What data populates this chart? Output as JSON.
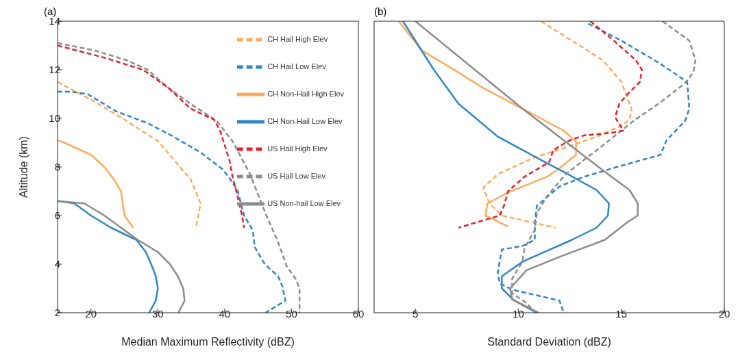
{
  "chart_data": [
    {
      "type": "line",
      "title": "(a)",
      "xlabel": "Median Maximum Reflectivity (dBZ)",
      "ylabel": "Altitude (km)",
      "xlim": [
        15,
        60
      ],
      "xticks": [
        20,
        30,
        40,
        50,
        60
      ],
      "ylim": [
        2,
        14
      ],
      "yticks": [
        2,
        4,
        6,
        8,
        10,
        12,
        14
      ],
      "grid": false,
      "legend": "top right",
      "marker": "none",
      "series": [
        {
          "name": "CH Hail High Elev",
          "color": "#ffab5c",
          "line_style": "dashed",
          "x": [
            15,
            20.5,
            25.3,
            30.1,
            33.3,
            34.9,
            36.4,
            35.9,
            35.7
          ],
          "values": [
            11.5,
            10.7,
            9.9,
            9.05,
            8.0,
            7.5,
            6.5,
            5.8,
            5.5
          ]
        },
        {
          "name": "CH Non-Hail High Elev",
          "color": "#ffab5c",
          "line_style": "solid",
          "x": [
            15,
            16,
            20,
            22,
            23.4,
            24.5,
            25,
            26.3
          ],
          "values": [
            9.1,
            9.0,
            8.5,
            8.0,
            7.5,
            7.0,
            6.0,
            5.5
          ]
        },
        {
          "name": "CH Hail Low Elev",
          "color": "#2e86c6",
          "line_style": "dashed",
          "x": [
            15,
            17,
            19.5,
            23.7,
            28.5,
            32,
            36.4,
            39.7,
            40.7,
            41.9,
            42.9,
            44.2,
            44.5,
            46,
            48,
            48.6,
            49.1,
            46.1
          ],
          "values": [
            11.1,
            11.1,
            11.0,
            10.3,
            9.8,
            9.3,
            8.6,
            7.9,
            7.55,
            7.05,
            6.0,
            5.4,
            4.7,
            4.0,
            3.5,
            3.1,
            2.5,
            2
          ]
        },
        {
          "name": "CH Non-Hail Low Elev",
          "color": "#2e86c6",
          "line_style": "solid",
          "x": [
            15,
            17.5,
            20,
            23,
            26.8,
            28.2,
            29,
            29.7,
            30,
            29.7,
            28.7
          ],
          "values": [
            6.6,
            6.5,
            6.0,
            5.5,
            5.0,
            4.5,
            4.0,
            3.5,
            3.0,
            2.5,
            2
          ]
        },
        {
          "name": "US Hail Low Elev",
          "color": "#8c8c8c",
          "line_style": "dashed",
          "x": [
            15,
            20.5,
            25.3,
            28.5,
            31.6,
            34.9,
            38.8,
            41.2,
            43.8,
            46.1,
            48,
            49.3,
            50.6,
            51.2,
            51.2
          ],
          "values": [
            13.1,
            12.8,
            12.4,
            12.0,
            11.25,
            10.6,
            9.9,
            9.05,
            7.7,
            6.1,
            4.9,
            3.9,
            3.4,
            3.0,
            2
          ]
        },
        {
          "name": "US Non-hail Low Elev",
          "color": "#8c8c8c",
          "line_style": "solid",
          "x": [
            15,
            19,
            22,
            24.5,
            27,
            30,
            31.8,
            33,
            33.8,
            34,
            33.1
          ],
          "values": [
            6.6,
            6.5,
            6.0,
            5.5,
            5.0,
            4.5,
            4.0,
            3.5,
            3.0,
            2.5,
            2
          ]
        },
        {
          "name": "US Hail High Elev",
          "color": "#e8202a",
          "line_style": "dashed",
          "x": [
            15,
            22,
            27.8,
            31.6,
            34.9,
            38.4,
            39.3,
            40.7,
            41.2,
            41.7,
            42.6,
            42.9
          ],
          "values": [
            13.0,
            12.5,
            12.0,
            11.25,
            10.4,
            9.95,
            9.5,
            8.3,
            7.55,
            7.05,
            6.0,
            5.5
          ]
        }
      ]
    },
    {
      "type": "line",
      "title": "(b)",
      "xlabel": "Standard Deviation (dBZ)",
      "xlim": [
        3,
        20
      ],
      "xticks": [
        5,
        10,
        15,
        20
      ],
      "ylim": [
        2,
        14
      ],
      "yticks": [
        2,
        4,
        6,
        8,
        10,
        12,
        14
      ],
      "tick_labels": "x",
      "grid": false,
      "marker": "none",
      "series": [
        {
          "color": "#ffab5c",
          "line_style": "dashed",
          "x": [
            11.1,
            12.6,
            14.1,
            15.0,
            15.5,
            15.4,
            15.0,
            13.8,
            12.3,
            10.8,
            9.0,
            8.3,
            8.6,
            9.2,
            11.8
          ],
          "values": [
            14,
            13.2,
            12.4,
            11.5,
            10.4,
            9.95,
            9.7,
            9.25,
            8.8,
            8.4,
            7.7,
            7.15,
            6.5,
            6.0,
            5.5
          ]
        },
        {
          "color": "#ffab5c",
          "line_style": "solid",
          "x": [
            4.2,
            5.3,
            6.5,
            8.3,
            10.2,
            12.2,
            12.8,
            12.8,
            12.0,
            11.4,
            9.5,
            8.5,
            8.4,
            9.5
          ],
          "values": [
            14,
            12.8,
            12.2,
            11.25,
            10.4,
            9.5,
            9.05,
            8.5,
            7.95,
            7.6,
            6.95,
            6.5,
            6.0,
            5.55
          ]
        },
        {
          "color": "#2e86c6",
          "line_style": "dashed",
          "x": [
            13.4,
            15.0,
            16.8,
            18.2,
            18.3,
            18.1,
            17.2,
            16.9,
            15.0,
            13.2,
            12.0,
            10.9,
            10.8,
            10.8,
            10.2,
            9.2,
            9.0,
            9.1,
            9.7,
            12.0,
            12.2
          ],
          "values": [
            13.9,
            13.2,
            12.3,
            11.5,
            10.4,
            9.9,
            9.1,
            8.5,
            8.05,
            7.6,
            7.2,
            6.4,
            5.7,
            5.0,
            4.75,
            4.6,
            3.65,
            3.2,
            2.95,
            2.5,
            2
          ]
        },
        {
          "color": "#2e86c6",
          "line_style": "solid",
          "x": [
            4.4,
            5.9,
            7.1,
            9.0,
            11.4,
            12.2,
            13.8,
            14.4,
            14.35,
            13.8,
            12.6,
            10.2,
            9.2,
            9.2,
            9.8,
            10.9
          ],
          "values": [
            14,
            12.0,
            10.6,
            9.25,
            8.15,
            7.8,
            7.05,
            6.5,
            6.0,
            5.5,
            5.0,
            4.1,
            3.5,
            3.0,
            2.5,
            2
          ]
        },
        {
          "color": "#8c8c8c",
          "line_style": "dashed",
          "x": [
            17.0,
            18.3,
            18.6,
            18.5,
            18.1,
            16.8,
            15.6,
            14.2,
            13.2,
            12.3,
            11.4,
            10.9,
            10.8,
            10.3,
            10.2,
            9.7,
            9.7,
            10.4,
            10.8
          ],
          "values": [
            14,
            13.2,
            12.4,
            11.9,
            11.45,
            10.6,
            9.9,
            8.95,
            8.3,
            7.7,
            6.8,
            6.1,
            5.4,
            4.66,
            4.1,
            3.4,
            2.8,
            2.4,
            2
          ]
        },
        {
          "color": "#8c8c8c",
          "line_style": "solid",
          "x": [
            5.0,
            10.2,
            14.2,
            15.4,
            15.8,
            15.8,
            15.25,
            14.2,
            12.0,
            10.4,
            9.6,
            9.7,
            11.0
          ],
          "values": [
            14,
            10.4,
            7.8,
            7.05,
            6.5,
            6.0,
            5.7,
            5.0,
            4.3,
            3.75,
            3.0,
            2.55,
            2
          ]
        },
        {
          "color": "#e8202a",
          "line_style": "dashed",
          "x": [
            13.5,
            14.5,
            15.7,
            16.0,
            15.9,
            15.25,
            14.9,
            14.7,
            15.1,
            14.5,
            13.2,
            12.5,
            11.7,
            11.5,
            10.3,
            9.5,
            9.3,
            9.1,
            7.1
          ],
          "values": [
            14,
            13.3,
            12.4,
            12.0,
            11.5,
            10.95,
            10.6,
            10.05,
            9.5,
            9.4,
            9.3,
            9.1,
            8.7,
            8.2,
            7.6,
            7.0,
            6.4,
            6.0,
            5.5
          ]
        }
      ]
    }
  ]
}
